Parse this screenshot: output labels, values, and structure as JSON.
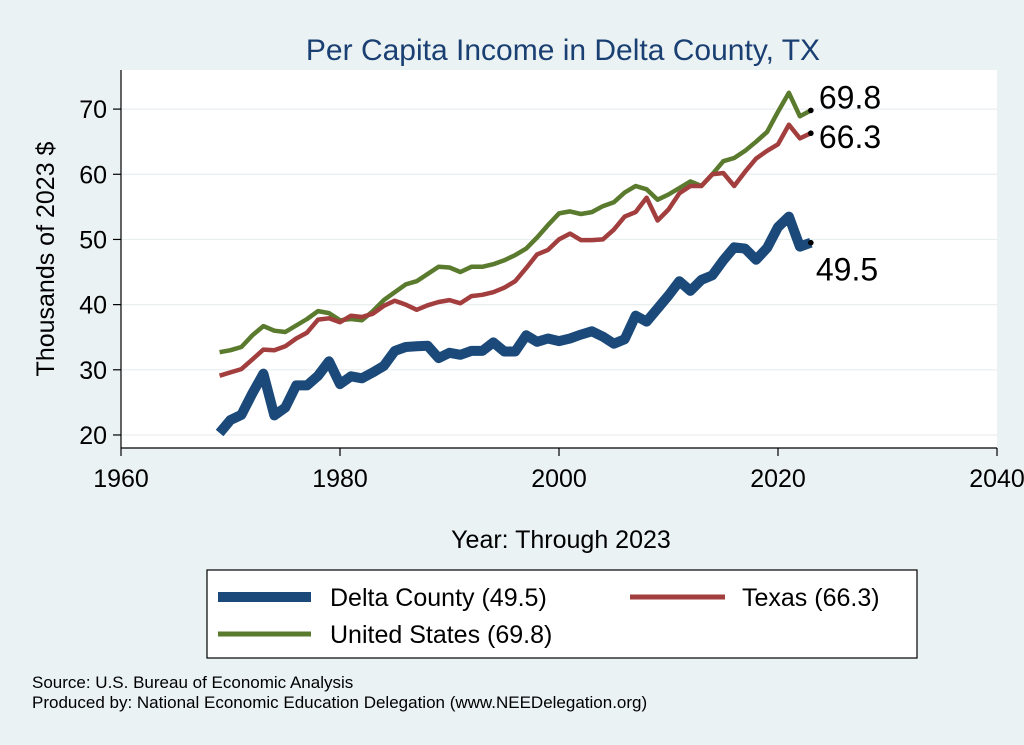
{
  "chart_data": {
    "type": "line",
    "title": "Per Capita Income in Delta County, TX",
    "xlabel": "Year: Through 2023",
    "ylabel": "Thousands of 2023 $",
    "xlim": [
      1960,
      2040
    ],
    "ylim": [
      18,
      76
    ],
    "xticks": [
      1960,
      1980,
      2000,
      2020,
      2040
    ],
    "yticks": [
      20,
      30,
      40,
      50,
      60,
      70
    ],
    "grid": true,
    "legend_position": "bottom",
    "x": [
      1969,
      1970,
      1971,
      1972,
      1973,
      1974,
      1975,
      1976,
      1977,
      1978,
      1979,
      1980,
      1981,
      1982,
      1983,
      1984,
      1985,
      1986,
      1987,
      1988,
      1989,
      1990,
      1991,
      1992,
      1993,
      1994,
      1995,
      1996,
      1997,
      1998,
      1999,
      2000,
      2001,
      2002,
      2003,
      2004,
      2005,
      2006,
      2007,
      2008,
      2009,
      2010,
      2011,
      2012,
      2013,
      2014,
      2015,
      2016,
      2017,
      2018,
      2019,
      2020,
      2021,
      2022,
      2023
    ],
    "series": [
      {
        "name": "Delta County",
        "legend_label": "Delta County (49.5)",
        "color": "#1b4a7a",
        "end_label": "49.5",
        "values": [
          20.3,
          22.3,
          23.1,
          26.4,
          29.4,
          23.0,
          24.2,
          27.6,
          27.6,
          29.1,
          31.3,
          27.8,
          29.0,
          28.7,
          29.6,
          30.6,
          32.9,
          33.5,
          33.6,
          33.7,
          31.8,
          32.6,
          32.3,
          32.9,
          32.9,
          34.2,
          32.8,
          32.8,
          35.3,
          34.3,
          34.8,
          34.4,
          34.8,
          35.4,
          35.9,
          35.1,
          34.0,
          34.7,
          38.3,
          37.4,
          39.4,
          41.4,
          43.6,
          42.1,
          43.8,
          44.5,
          46.8,
          48.8,
          48.6,
          46.9,
          48.7,
          51.9,
          53.5,
          48.9,
          49.5
        ]
      },
      {
        "name": "Texas",
        "legend_label": "Texas (66.3)",
        "color": "#a33e3e",
        "end_label": "66.3",
        "values": [
          29.1,
          29.6,
          30.1,
          31.6,
          33.1,
          33.0,
          33.6,
          34.8,
          35.7,
          37.7,
          37.9,
          37.3,
          38.3,
          38.1,
          38.6,
          39.8,
          40.6,
          40.0,
          39.2,
          39.9,
          40.4,
          40.7,
          40.2,
          41.3,
          41.5,
          41.9,
          42.6,
          43.6,
          45.6,
          47.7,
          48.4,
          50.0,
          50.9,
          49.9,
          49.9,
          50.0,
          51.5,
          53.5,
          54.2,
          56.4,
          52.9,
          54.6,
          57.1,
          58.2,
          58.2,
          60.0,
          60.2,
          58.2,
          60.4,
          62.4,
          63.6,
          64.6,
          67.6,
          65.5,
          66.3
        ]
      },
      {
        "name": "United States",
        "legend_label": "United States (69.8)",
        "color": "#5a7a2e",
        "end_label": "69.8",
        "values": [
          32.7,
          33.0,
          33.5,
          35.3,
          36.7,
          36.0,
          35.8,
          36.8,
          37.8,
          39.0,
          38.7,
          37.6,
          37.8,
          37.6,
          39.0,
          40.7,
          41.9,
          43.1,
          43.6,
          44.7,
          45.8,
          45.7,
          45.0,
          45.8,
          45.8,
          46.2,
          46.8,
          47.6,
          48.6,
          50.3,
          52.2,
          54.0,
          54.3,
          53.9,
          54.2,
          55.1,
          55.7,
          57.2,
          58.2,
          57.7,
          56.1,
          56.9,
          57.9,
          58.9,
          58.2,
          60.0,
          62.0,
          62.5,
          63.6,
          65.0,
          66.5,
          69.6,
          72.5,
          68.9,
          69.8
        ]
      }
    ],
    "source_lines": [
      "Source: U.S. Bureau of Economic Analysis",
      "Produced by: National Economic Education Delegation (www.NEEDelegation.org)"
    ]
  }
}
